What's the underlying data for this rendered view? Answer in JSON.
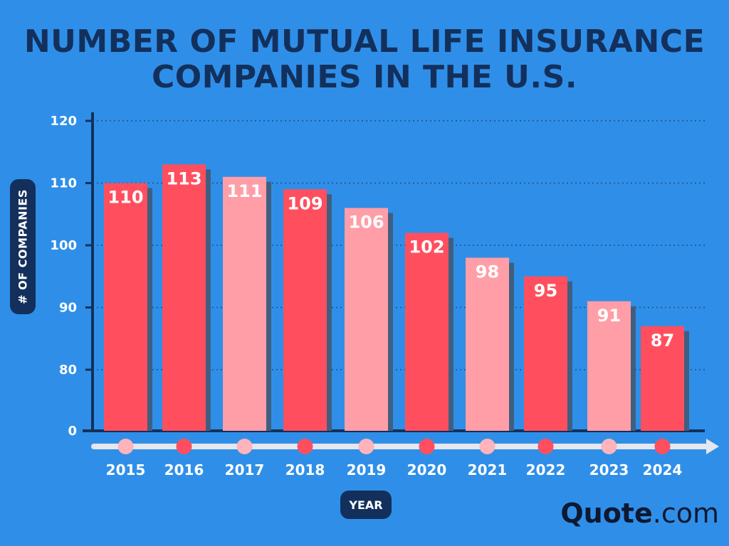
{
  "chart_data": {
    "type": "bar",
    "title_lines": [
      "NUMBER OF MUTUAL LIFE INSURANCE",
      "COMPANIES IN THE U.S."
    ],
    "ylabel": "# OF COMPANIES",
    "xlabel": "YEAR",
    "categories": [
      "2015",
      "2016",
      "2017",
      "2018",
      "2019",
      "2020",
      "2021",
      "2022",
      "2023",
      "2024"
    ],
    "values": [
      110,
      113,
      111,
      109,
      106,
      102,
      98,
      95,
      91,
      87
    ],
    "value_labels": [
      "110",
      "113",
      "111",
      "109",
      "106",
      "102",
      "98",
      "95",
      "91",
      "87"
    ],
    "y_ticks": [
      {
        "label": "0",
        "value": 0
      },
      {
        "label": "80",
        "value": 80
      },
      {
        "label": "90",
        "value": 90
      },
      {
        "label": "100",
        "value": 100
      },
      {
        "label": "110",
        "value": 110
      },
      {
        "label": "120",
        "value": 120
      }
    ],
    "ylim": [
      0,
      120
    ],
    "y_axis_break": {
      "from": 0,
      "to": 80
    },
    "grid": true,
    "bar_colors": [
      "#ff4f5f",
      "#ff4f5f",
      "#ff9ea7",
      "#ff4f5f",
      "#ff9ea7",
      "#ff4f5f",
      "#ff9ea7",
      "#ff4f5f",
      "#ff9ea7",
      "#ff4f5f"
    ],
    "dot_colors": [
      "#ffb3bb",
      "#ff4f5f",
      "#ffb3bb",
      "#ff4f5f",
      "#ffb3bb",
      "#ff4f5f",
      "#ffb3bb",
      "#ff4f5f",
      "#ffb3bb",
      "#ff4f5f"
    ]
  },
  "brand": {
    "logo_bold": "Quote",
    "logo_rest": ".com"
  },
  "colors": {
    "background": "#2f8fe8",
    "axis": "#13305c",
    "bar_shadow": "#3f5f80",
    "grid": "#1f4f8a",
    "timeline": "#e6e6ee"
  }
}
